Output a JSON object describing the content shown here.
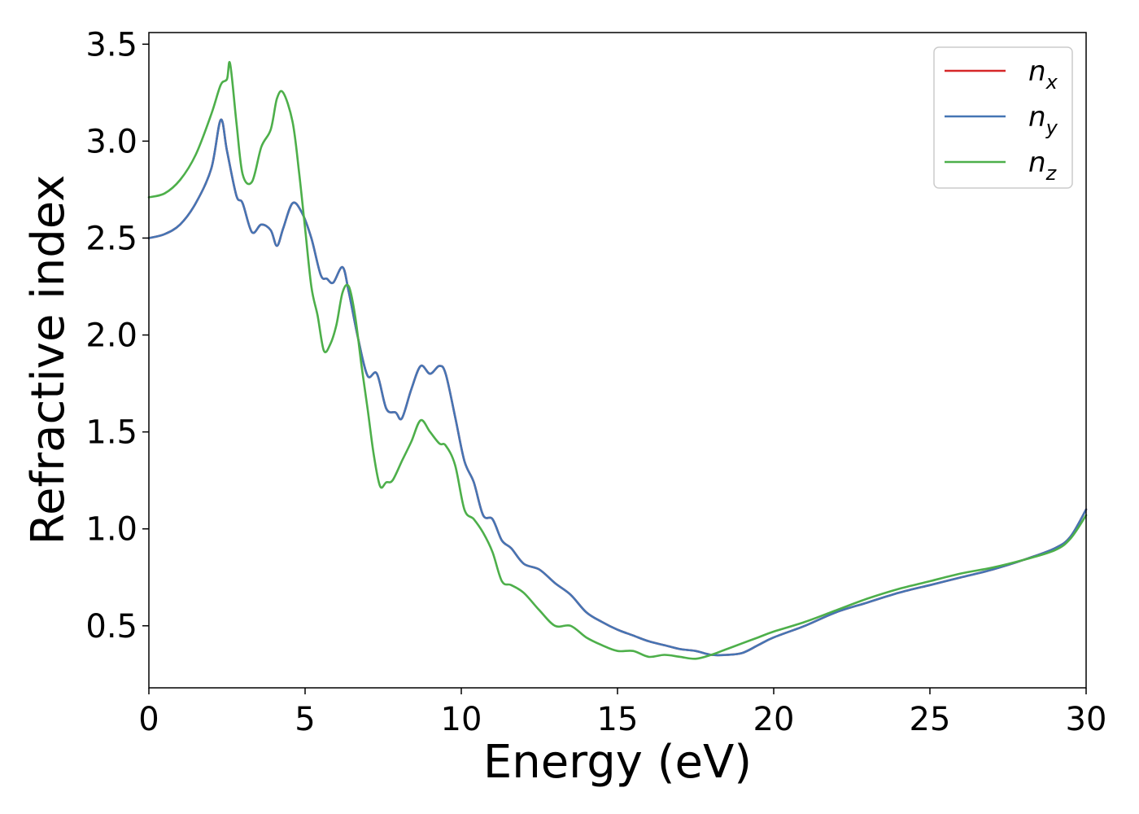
{
  "chart_data": {
    "type": "line",
    "xlabel": "Energy (eV)",
    "ylabel": "Refractive index",
    "xlim": [
      0,
      30
    ],
    "ylim": [
      0.18,
      3.56
    ],
    "xticks": [
      0,
      5,
      10,
      15,
      20,
      25,
      30
    ],
    "xtick_labels": [
      "0",
      "5",
      "10",
      "15",
      "20",
      "25",
      "30"
    ],
    "yticks": [
      0.5,
      1.0,
      1.5,
      2.0,
      2.5,
      3.0,
      3.5
    ],
    "ytick_labels": [
      "0.5",
      "1.0",
      "1.5",
      "2.0",
      "2.5",
      "3.0",
      "3.5"
    ],
    "grid": false,
    "legend_position": "top-right",
    "series": [
      {
        "name": "n",
        "subscript": "x",
        "color": "#d62728",
        "x": [
          0,
          0.5,
          1.0,
          1.5,
          2.0,
          2.3,
          2.5,
          2.8,
          3.0,
          3.3,
          3.6,
          3.9,
          4.1,
          4.3,
          4.6,
          4.9,
          5.2,
          5.5,
          5.7,
          5.9,
          6.2,
          6.4,
          6.7,
          7.0,
          7.3,
          7.6,
          7.9,
          8.1,
          8.4,
          8.7,
          9.0,
          9.3,
          9.5,
          9.8,
          10.1,
          10.4,
          10.7,
          11.0,
          11.3,
          11.6,
          12.0,
          12.5,
          13.0,
          13.5,
          14.0,
          14.5,
          15.0,
          15.5,
          16.0,
          16.5,
          17.0,
          17.5,
          18.0,
          18.5,
          19.0,
          19.5,
          20.0,
          21.0,
          22.0,
          23.0,
          24.0,
          25.0,
          26.0,
          27.0,
          28.0,
          29.0,
          29.5,
          30.0
        ],
        "y": [
          2.5,
          2.52,
          2.57,
          2.68,
          2.86,
          3.11,
          2.95,
          2.72,
          2.68,
          2.53,
          2.57,
          2.54,
          2.46,
          2.55,
          2.68,
          2.63,
          2.5,
          2.31,
          2.29,
          2.27,
          2.35,
          2.22,
          1.98,
          1.79,
          1.8,
          1.62,
          1.6,
          1.57,
          1.72,
          1.84,
          1.8,
          1.84,
          1.8,
          1.58,
          1.35,
          1.24,
          1.07,
          1.05,
          0.94,
          0.9,
          0.82,
          0.79,
          0.72,
          0.66,
          0.57,
          0.52,
          0.48,
          0.45,
          0.42,
          0.4,
          0.38,
          0.37,
          0.35,
          0.35,
          0.36,
          0.4,
          0.44,
          0.5,
          0.57,
          0.62,
          0.67,
          0.71,
          0.75,
          0.79,
          0.84,
          0.9,
          0.96,
          1.1
        ]
      },
      {
        "name": "n",
        "subscript": "y",
        "color": "#4575b4",
        "x": [
          0,
          0.5,
          1.0,
          1.5,
          2.0,
          2.3,
          2.5,
          2.8,
          3.0,
          3.3,
          3.6,
          3.9,
          4.1,
          4.3,
          4.6,
          4.9,
          5.2,
          5.5,
          5.7,
          5.9,
          6.2,
          6.4,
          6.7,
          7.0,
          7.3,
          7.6,
          7.9,
          8.1,
          8.4,
          8.7,
          9.0,
          9.3,
          9.5,
          9.8,
          10.1,
          10.4,
          10.7,
          11.0,
          11.3,
          11.6,
          12.0,
          12.5,
          13.0,
          13.5,
          14.0,
          14.5,
          15.0,
          15.5,
          16.0,
          16.5,
          17.0,
          17.5,
          18.0,
          18.5,
          19.0,
          19.5,
          20.0,
          21.0,
          22.0,
          23.0,
          24.0,
          25.0,
          26.0,
          27.0,
          28.0,
          29.0,
          29.5,
          30.0
        ],
        "y": [
          2.5,
          2.52,
          2.57,
          2.68,
          2.86,
          3.11,
          2.95,
          2.72,
          2.68,
          2.53,
          2.57,
          2.54,
          2.46,
          2.55,
          2.68,
          2.63,
          2.5,
          2.31,
          2.29,
          2.27,
          2.35,
          2.22,
          1.98,
          1.79,
          1.8,
          1.62,
          1.6,
          1.57,
          1.72,
          1.84,
          1.8,
          1.84,
          1.8,
          1.58,
          1.35,
          1.24,
          1.07,
          1.05,
          0.94,
          0.9,
          0.82,
          0.79,
          0.72,
          0.66,
          0.57,
          0.52,
          0.48,
          0.45,
          0.42,
          0.4,
          0.38,
          0.37,
          0.35,
          0.35,
          0.36,
          0.4,
          0.44,
          0.5,
          0.57,
          0.62,
          0.67,
          0.71,
          0.75,
          0.79,
          0.84,
          0.9,
          0.96,
          1.1
        ]
      },
      {
        "name": "n",
        "subscript": "z",
        "color": "#4daf4a",
        "x": [
          0,
          0.5,
          1.0,
          1.5,
          2.0,
          2.3,
          2.5,
          2.6,
          2.8,
          3.0,
          3.3,
          3.6,
          3.9,
          4.1,
          4.3,
          4.6,
          4.8,
          5.0,
          5.2,
          5.4,
          5.6,
          5.8,
          6.0,
          6.2,
          6.4,
          6.6,
          6.8,
          7.0,
          7.2,
          7.4,
          7.6,
          7.8,
          8.1,
          8.4,
          8.7,
          9.0,
          9.3,
          9.5,
          9.8,
          10.1,
          10.4,
          10.7,
          11.0,
          11.3,
          11.6,
          12.0,
          12.5,
          13.0,
          13.5,
          14.0,
          14.5,
          15.0,
          15.5,
          16.0,
          16.5,
          17.0,
          17.5,
          18.0,
          18.5,
          19.0,
          19.5,
          20.0,
          21.0,
          22.0,
          23.0,
          24.0,
          25.0,
          26.0,
          27.0,
          28.0,
          29.0,
          29.5,
          30.0
        ],
        "y": [
          2.71,
          2.73,
          2.8,
          2.93,
          3.14,
          3.29,
          3.32,
          3.4,
          3.1,
          2.83,
          2.79,
          2.97,
          3.06,
          3.22,
          3.25,
          3.1,
          2.85,
          2.55,
          2.25,
          2.1,
          1.92,
          1.95,
          2.05,
          2.22,
          2.25,
          2.1,
          1.85,
          1.62,
          1.38,
          1.22,
          1.24,
          1.25,
          1.35,
          1.45,
          1.56,
          1.5,
          1.44,
          1.43,
          1.33,
          1.1,
          1.05,
          0.98,
          0.88,
          0.73,
          0.71,
          0.67,
          0.58,
          0.5,
          0.5,
          0.44,
          0.4,
          0.37,
          0.37,
          0.34,
          0.35,
          0.34,
          0.33,
          0.35,
          0.38,
          0.41,
          0.44,
          0.47,
          0.52,
          0.58,
          0.64,
          0.69,
          0.73,
          0.77,
          0.8,
          0.84,
          0.89,
          0.95,
          1.07
        ]
      }
    ]
  }
}
